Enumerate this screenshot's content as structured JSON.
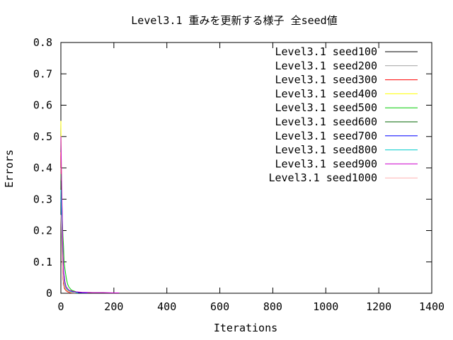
{
  "chart_data": {
    "type": "line",
    "title": "Level3.1 重みを更新する様子 全seed値",
    "xlabel": "Iterations",
    "ylabel": "Errors",
    "xlim": [
      0,
      1400
    ],
    "ylim": [
      0,
      0.8
    ],
    "xticks": [
      0,
      200,
      400,
      600,
      800,
      1000,
      1200,
      1400
    ],
    "yticks": [
      0,
      0.1,
      0.2,
      0.3,
      0.4,
      0.5,
      0.6,
      0.7,
      0.8
    ],
    "xtick_labels": [
      "0",
      "200",
      "400",
      "600",
      "800",
      "1000",
      "1200",
      "1400"
    ],
    "ytick_labels": [
      "0",
      "0.1",
      "0.2",
      "0.3",
      "0.4",
      "0.5",
      "0.6",
      "0.7",
      "0.8"
    ],
    "grid": false,
    "legend_position": "top-right",
    "series": [
      {
        "name": "Level3.1 seed100",
        "color": "#000000",
        "x": [
          0,
          2,
          4,
          6,
          8,
          10,
          14,
          20,
          30,
          45,
          60
        ],
        "y": [
          0.47,
          0.35,
          0.22,
          0.12,
          0.06,
          0.03,
          0.015,
          0.008,
          0.004,
          0.002,
          0.001
        ]
      },
      {
        "name": "Level3.1  seed200",
        "color": "#a0a0a0",
        "x": [
          0,
          2,
          4,
          6,
          8,
          12,
          16,
          22,
          30,
          40,
          55
        ],
        "y": [
          0.4,
          0.3,
          0.2,
          0.11,
          0.07,
          0.04,
          0.02,
          0.01,
          0.006,
          0.003,
          0.001
        ]
      },
      {
        "name": "Level3.1  seed300",
        "color": "#ff0000",
        "x": [
          0,
          2,
          4,
          6,
          8,
          10,
          14,
          18,
          25,
          35,
          50
        ],
        "y": [
          0.45,
          0.33,
          0.18,
          0.1,
          0.05,
          0.03,
          0.015,
          0.01,
          0.005,
          0.002,
          0.001
        ]
      },
      {
        "name": "Level3.1  seed400",
        "color": "#ffff00",
        "x": [
          0,
          2,
          4,
          6,
          8,
          10,
          14,
          18,
          25,
          35,
          60
        ],
        "y": [
          0.55,
          0.38,
          0.25,
          0.15,
          0.09,
          0.05,
          0.03,
          0.015,
          0.008,
          0.004,
          0.001
        ]
      },
      {
        "name": "Level3.1  seed500",
        "color": "#00cc00",
        "x": [
          0,
          2,
          4,
          6,
          8,
          10,
          12,
          15,
          20,
          25,
          30,
          40,
          60,
          80
        ],
        "y": [
          0.38,
          0.36,
          0.28,
          0.22,
          0.18,
          0.15,
          0.1,
          0.08,
          0.05,
          0.03,
          0.02,
          0.01,
          0.004,
          0.002
        ]
      },
      {
        "name": "Level3.1  seed600",
        "color": "#006400",
        "x": [
          0,
          2,
          4,
          6,
          8,
          10,
          14,
          20,
          30,
          45,
          70,
          95
        ],
        "y": [
          0.36,
          0.28,
          0.2,
          0.14,
          0.1,
          0.07,
          0.04,
          0.02,
          0.01,
          0.004,
          0.002,
          0.001
        ]
      },
      {
        "name": "Level3.1  seed700",
        "color": "#0000ff",
        "x": [
          0,
          2,
          4,
          6,
          8,
          10,
          12,
          16,
          20,
          30,
          45,
          70,
          100
        ],
        "y": [
          0.3,
          0.28,
          0.24,
          0.18,
          0.12,
          0.08,
          0.06,
          0.03,
          0.02,
          0.01,
          0.005,
          0.002,
          0.001
        ]
      },
      {
        "name": "Level3.1  seed800",
        "color": "#00cccc",
        "x": [
          0,
          2,
          4,
          6,
          8,
          10,
          14,
          20,
          30,
          45,
          65
        ],
        "y": [
          0.33,
          0.25,
          0.18,
          0.12,
          0.08,
          0.05,
          0.03,
          0.015,
          0.008,
          0.003,
          0.001
        ]
      },
      {
        "name": "Level3.1  seed900",
        "color": "#cc00cc",
        "x": [
          0,
          2,
          4,
          6,
          8,
          10,
          14,
          20,
          30,
          50,
          80,
          120,
          160,
          200,
          220
        ],
        "y": [
          0.5,
          0.4,
          0.3,
          0.2,
          0.12,
          0.07,
          0.04,
          0.02,
          0.01,
          0.005,
          0.003,
          0.002,
          0.002,
          0.001,
          0.001
        ]
      },
      {
        "name": "Level3.1  seed1000",
        "color": "#ffb0b0",
        "x": [
          0,
          2,
          4,
          6,
          8,
          10,
          14,
          20,
          30,
          40,
          55
        ],
        "y": [
          0.25,
          0.2,
          0.14,
          0.1,
          0.06,
          0.04,
          0.02,
          0.01,
          0.005,
          0.002,
          0.001
        ]
      }
    ]
  }
}
